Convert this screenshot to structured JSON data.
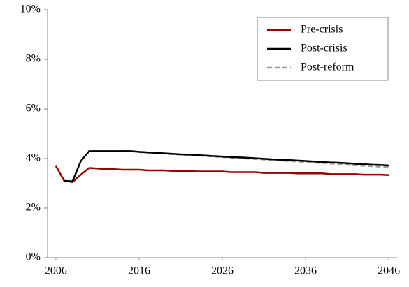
{
  "chart_data": {
    "type": "line",
    "x": [
      2006,
      2007,
      2008,
      2009,
      2010,
      2011,
      2012,
      2013,
      2014,
      2015,
      2016,
      2017,
      2018,
      2019,
      2020,
      2021,
      2022,
      2023,
      2024,
      2025,
      2026,
      2027,
      2028,
      2029,
      2030,
      2031,
      2032,
      2033,
      2034,
      2035,
      2036,
      2037,
      2038,
      2039,
      2040,
      2041,
      2042,
      2043,
      2044,
      2045,
      2046
    ],
    "series": [
      {
        "name": "Pre-crisis",
        "color": "#990000",
        "style": "solid",
        "values": [
          3.7,
          3.1,
          3.05,
          3.35,
          3.62,
          3.6,
          3.57,
          3.57,
          3.55,
          3.55,
          3.55,
          3.52,
          3.52,
          3.52,
          3.5,
          3.5,
          3.5,
          3.48,
          3.48,
          3.48,
          3.48,
          3.45,
          3.45,
          3.45,
          3.45,
          3.42,
          3.42,
          3.42,
          3.42,
          3.4,
          3.4,
          3.4,
          3.4,
          3.37,
          3.37,
          3.37,
          3.37,
          3.35,
          3.35,
          3.35,
          3.33
        ]
      },
      {
        "name": "Post-reform",
        "color": "#999999",
        "style": "dashed",
        "values": [
          null,
          null,
          null,
          null,
          null,
          null,
          null,
          null,
          4.3,
          4.3,
          4.26,
          4.24,
          4.22,
          4.2,
          4.18,
          4.16,
          4.14,
          4.12,
          4.1,
          4.08,
          4.06,
          4.04,
          4.02,
          4.0,
          3.98,
          3.96,
          3.94,
          3.92,
          3.9,
          3.88,
          3.86,
          3.84,
          3.82,
          3.8,
          3.78,
          3.75,
          3.73,
          3.71,
          3.69,
          3.67,
          3.65
        ]
      },
      {
        "name": "Post-crisis",
        "color": "#000000",
        "style": "solid",
        "values": [
          null,
          3.1,
          3.08,
          3.9,
          4.3,
          4.3,
          4.3,
          4.3,
          4.3,
          4.3,
          4.27,
          4.25,
          4.23,
          4.21,
          4.19,
          4.17,
          4.16,
          4.14,
          4.12,
          4.1,
          4.08,
          4.06,
          4.05,
          4.03,
          4.01,
          3.99,
          3.97,
          3.95,
          3.94,
          3.92,
          3.9,
          3.88,
          3.86,
          3.84,
          3.83,
          3.81,
          3.79,
          3.77,
          3.75,
          3.74,
          3.72
        ]
      }
    ],
    "legend_order": [
      0,
      2,
      1
    ],
    "xlim": [
      2005,
      2047
    ],
    "xticks": [
      2006,
      2016,
      2026,
      2036,
      2046
    ],
    "ylim": [
      0,
      10
    ],
    "yticks": [
      {
        "value": 0,
        "label": "0%"
      },
      {
        "value": 2,
        "label": "2%"
      },
      {
        "value": 4,
        "label": "4%"
      },
      {
        "value": 6,
        "label": "6%"
      },
      {
        "value": 8,
        "label": "8%"
      },
      {
        "value": 10,
        "label": "10%"
      }
    ],
    "grid": false,
    "legend": "upper right"
  }
}
